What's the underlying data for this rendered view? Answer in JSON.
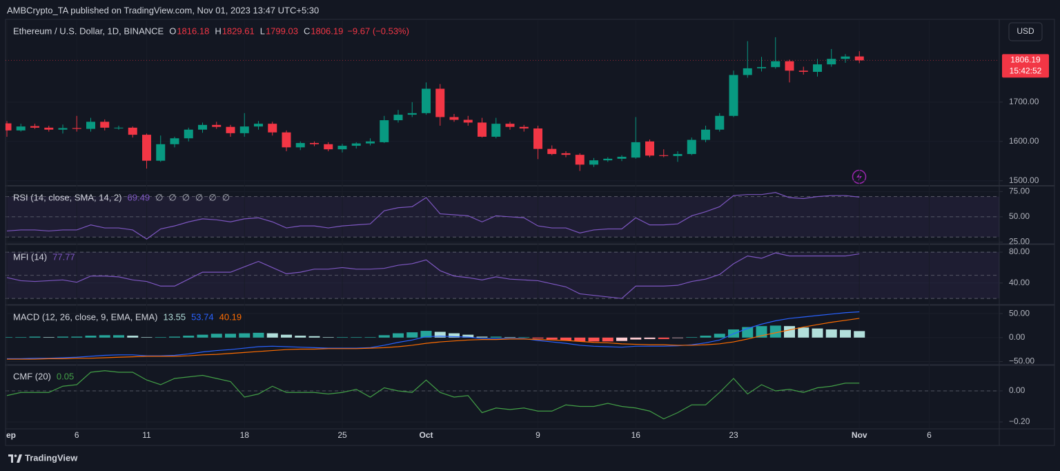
{
  "header": "AMBCrypto_TA published on TradingView.com, Nov 01, 2023 13:47 UTC+5:30",
  "footer": "TradingView",
  "chart_data": [
    {
      "type": "candlestick",
      "title": "Ethereum / U.S. Dollar, 1D, BINANCE",
      "ohlc_labels": [
        "O",
        "H",
        "L",
        "C"
      ],
      "change": "−9.67 (−0.53%)",
      "currency": "USD",
      "countdown": "15:42:52",
      "up_color": "#089981",
      "down_color": "#f23645",
      "categories": [
        "ep",
        null,
        null,
        null,
        null,
        "6",
        null,
        null,
        null,
        null,
        "11",
        null,
        null,
        null,
        null,
        null,
        null,
        "18",
        null,
        null,
        null,
        null,
        null,
        null,
        "25",
        null,
        null,
        null,
        null,
        null,
        "Oct",
        null,
        null,
        null,
        null,
        null,
        null,
        null,
        "9",
        null,
        null,
        null,
        null,
        null,
        null,
        "16",
        null,
        null,
        null,
        null,
        null,
        null,
        "23",
        null,
        null,
        null,
        null,
        null,
        null,
        null,
        null,
        "Nov"
      ],
      "categories_ahead": [
        null,
        null,
        null,
        null,
        "6"
      ],
      "open": [
        1646,
        1628,
        1639,
        1635,
        1630,
        1634,
        1632,
        1650,
        1635,
        1635,
        1617,
        1551,
        1593,
        1608,
        1630,
        1642,
        1637,
        1621,
        1638,
        1645,
        1623,
        1585,
        1596,
        1593,
        1580,
        1589,
        1595,
        1598,
        1654,
        1668,
        1672,
        1734,
        1662,
        1655,
        1648,
        1612,
        1645,
        1637,
        1633,
        1581,
        1570,
        1566,
        1541,
        1552,
        1556,
        1559,
        1600,
        1565,
        1563,
        1568,
        1604,
        1630,
        1665,
        1769,
        1786,
        1789,
        1804,
        1780,
        1777,
        1796,
        1810,
        1816.18
      ],
      "high": [
        1652,
        1645,
        1645,
        1640,
        1643,
        1665,
        1660,
        1656,
        1640,
        1638,
        1620,
        1615,
        1612,
        1635,
        1648,
        1650,
        1642,
        1672,
        1652,
        1650,
        1628,
        1600,
        1600,
        1598,
        1594,
        1598,
        1608,
        1665,
        1680,
        1700,
        1750,
        1746,
        1670,
        1665,
        1660,
        1660,
        1650,
        1642,
        1640,
        1590,
        1575,
        1570,
        1558,
        1560,
        1565,
        1662,
        1605,
        1580,
        1575,
        1610,
        1640,
        1672,
        1780,
        1855,
        1815,
        1865,
        1808,
        1790,
        1810,
        1835,
        1822,
        1829.61
      ],
      "low": [
        1612,
        1625,
        1632,
        1625,
        1620,
        1625,
        1625,
        1628,
        1630,
        1610,
        1531,
        1548,
        1585,
        1600,
        1622,
        1632,
        1612,
        1612,
        1630,
        1615,
        1575,
        1578,
        1588,
        1575,
        1572,
        1582,
        1590,
        1596,
        1648,
        1662,
        1668,
        1640,
        1650,
        1640,
        1610,
        1608,
        1630,
        1625,
        1555,
        1565,
        1560,
        1525,
        1535,
        1548,
        1550,
        1556,
        1560,
        1560,
        1548,
        1565,
        1598,
        1625,
        1662,
        1762,
        1778,
        1785,
        1750,
        1770,
        1765,
        1790,
        1800,
        1799.03
      ],
      "close": [
        1628,
        1638,
        1635,
        1630,
        1634,
        1632,
        1650,
        1635,
        1635,
        1617,
        1551,
        1593,
        1608,
        1630,
        1642,
        1637,
        1621,
        1638,
        1645,
        1623,
        1585,
        1596,
        1593,
        1580,
        1589,
        1595,
        1600,
        1654,
        1668,
        1672,
        1734,
        1662,
        1655,
        1648,
        1612,
        1645,
        1637,
        1633,
        1581,
        1568,
        1566,
        1541,
        1552,
        1556,
        1561,
        1598,
        1564,
        1563,
        1568,
        1604,
        1630,
        1665,
        1769,
        1786,
        1789,
        1804,
        1780,
        1777,
        1796,
        1810,
        1816,
        1806.19
      ],
      "ylim": [
        1489,
        1907
      ],
      "yticks": [
        {
          "value": 1500,
          "label": "1500.00"
        },
        {
          "value": 1600,
          "label": "1600.00"
        },
        {
          "value": 1700,
          "label": "1700.00"
        }
      ]
    },
    {
      "type": "line",
      "title": "RSI (14, close, SMA, 14, 2)",
      "placeholders": [
        "∅",
        "∅",
        "∅",
        "∅",
        "∅",
        "∅"
      ],
      "color": "#7e57c2",
      "values": [
        36,
        37,
        37,
        36,
        37,
        37,
        42,
        39,
        39,
        37,
        28,
        38,
        41,
        45,
        48,
        47,
        45,
        48,
        49,
        45,
        39,
        41,
        41,
        39,
        41,
        42,
        43,
        56,
        59,
        60,
        69,
        53,
        52,
        51,
        45,
        51,
        50,
        49,
        41,
        39,
        39,
        34,
        37,
        38,
        38,
        49,
        42,
        42,
        43,
        51,
        55,
        60,
        71,
        72,
        72,
        74,
        69,
        68,
        70,
        71,
        71,
        69.49
      ],
      "band": [
        30,
        70
      ],
      "midline": 50,
      "ylim": [
        24,
        80
      ],
      "yticks": [
        {
          "value": 25,
          "label": "25.00"
        },
        {
          "value": 50,
          "label": "50.00"
        },
        {
          "value": 75,
          "label": "75.00"
        }
      ]
    },
    {
      "type": "line",
      "title": "MFI (14)",
      "color": "#7e57c2",
      "values": [
        47,
        43,
        42,
        43,
        44,
        41,
        49,
        49,
        48,
        44,
        42,
        36,
        36,
        45,
        54,
        54,
        54,
        61,
        68,
        60,
        52,
        54,
        58,
        58,
        60,
        58,
        58,
        59,
        63,
        65,
        70,
        56,
        49,
        47,
        44,
        48,
        45,
        44,
        43,
        39,
        35,
        26,
        24,
        22,
        20,
        36,
        36,
        36,
        37,
        42,
        45,
        51,
        65,
        75,
        72,
        79,
        75,
        75,
        75,
        75,
        75,
        77.77
      ],
      "band": [
        20,
        80
      ],
      "midline": 50,
      "ylim": [
        13,
        89
      ],
      "yticks": [
        {
          "value": 40,
          "label": "40.00"
        },
        {
          "value": 80,
          "label": "80.00"
        }
      ]
    },
    {
      "type": "macd",
      "title": "MACD (12, 26, close, 9, EMA, EMA)",
      "histogram": {
        "colors": [
          "#26a69a",
          "#b2dfdb",
          "#ff5252",
          "#ffcdd2"
        ],
        "values": [
          1,
          1,
          2,
          1,
          2,
          2,
          4,
          5,
          5,
          4,
          1,
          1,
          2,
          4,
          6,
          8,
          8,
          9,
          10,
          9,
          6,
          4,
          3,
          1,
          1,
          1,
          1,
          5,
          9,
          11,
          14,
          12,
          9,
          6,
          2,
          2,
          1,
          1,
          -2,
          -4,
          -6,
          -8,
          -8,
          -8,
          -7,
          -4,
          -3,
          -3,
          -1,
          1,
          4,
          8,
          17,
          22,
          24,
          25,
          24,
          21,
          19,
          17,
          16,
          13.55
        ]
      },
      "series": [
        {
          "color": "#2962ff",
          "values": [
            -44,
            -44,
            -43,
            -43,
            -42,
            -41,
            -39,
            -37,
            -36,
            -36,
            -38,
            -38,
            -37,
            -34,
            -30,
            -27,
            -25,
            -22,
            -19,
            -18,
            -19,
            -20,
            -21,
            -22,
            -22,
            -22,
            -21,
            -16,
            -10,
            -5,
            2,
            3,
            2,
            1,
            -2,
            -2,
            -2,
            -2,
            -6,
            -9,
            -12,
            -16,
            -18,
            -19,
            -20,
            -18,
            -18,
            -18,
            -17,
            -15,
            -11,
            -5,
            8,
            19,
            28,
            35,
            40,
            43,
            46,
            49,
            52,
            53.74
          ]
        },
        {
          "color": "#ff6d00",
          "values": [
            -45,
            -45,
            -45,
            -44,
            -44,
            -43,
            -43,
            -42,
            -41,
            -40,
            -39,
            -39,
            -39,
            -38,
            -36,
            -35,
            -33,
            -31,
            -29,
            -27,
            -25,
            -24,
            -24,
            -23,
            -23,
            -23,
            -22,
            -21,
            -19,
            -16,
            -12,
            -9,
            -7,
            -5,
            -4,
            -4,
            -3,
            -3,
            -4,
            -5,
            -6,
            -8,
            -10,
            -11,
            -13,
            -14,
            -15,
            -15,
            -16,
            -16,
            -15,
            -13,
            -9,
            -3,
            4,
            10,
            16,
            22,
            27,
            32,
            36,
            40.19
          ]
        }
      ],
      "ylim": [
        -55,
        66
      ],
      "yticks": [
        {
          "value": -50,
          "label": "−50.00"
        },
        {
          "value": 0,
          "label": "0.00"
        },
        {
          "value": 50,
          "label": "50.00"
        }
      ]
    },
    {
      "type": "line",
      "title": "CMF (20)",
      "color": "#43a047",
      "values": [
        -0.03,
        -0.01,
        -0.01,
        -0.01,
        0.03,
        0.04,
        0.12,
        0.13,
        0.12,
        0.12,
        0.07,
        0.04,
        0.08,
        0.09,
        0.1,
        0.08,
        0.06,
        -0.04,
        -0.02,
        0.03,
        -0.01,
        -0.01,
        -0.01,
        -0.02,
        -0.01,
        0.01,
        -0.04,
        0.02,
        0.0,
        -0.01,
        0.07,
        -0.01,
        -0.04,
        -0.03,
        -0.14,
        -0.11,
        -0.12,
        -0.11,
        -0.13,
        -0.13,
        -0.09,
        -0.1,
        -0.1,
        -0.08,
        -0.1,
        -0.11,
        -0.13,
        -0.18,
        -0.14,
        -0.09,
        -0.09,
        -0.01,
        0.08,
        -0.02,
        0.04,
        0.0,
        0.01,
        -0.01,
        0.02,
        0.03,
        0.05,
        0.05
      ],
      "midline": 0,
      "ylim": [
        -0.24,
        0.16
      ],
      "yticks": [
        {
          "value": -0.2,
          "label": "−0.20"
        },
        {
          "value": 0,
          "label": "0.00"
        }
      ]
    }
  ]
}
